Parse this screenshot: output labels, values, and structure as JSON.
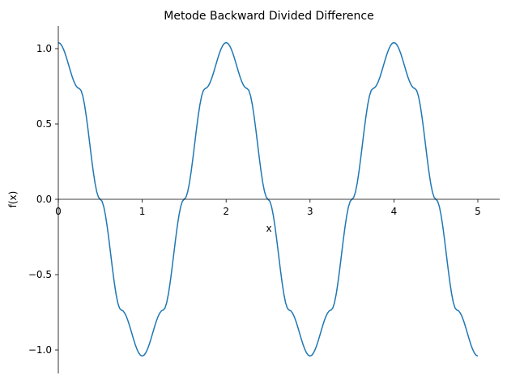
{
  "chart_data": {
    "type": "line",
    "title": "Metode Backward Divided Difference",
    "xlabel": "x",
    "ylabel": "f(x)",
    "xlim": [
      0,
      5.25
    ],
    "ylim": [
      -1.15,
      1.15
    ],
    "x_ticks": [
      0,
      1,
      2,
      3,
      4,
      5
    ],
    "x_tick_labels": [
      "0",
      "1",
      "2",
      "3",
      "4",
      "5"
    ],
    "y_ticks": [
      -1.0,
      -0.5,
      0.0,
      0.5,
      1.0
    ],
    "y_tick_labels": [
      "−1.0",
      "−0.5",
      "0.0",
      "0.5",
      "1.0"
    ],
    "grid": false,
    "series": [
      {
        "color": "#1f77b4",
        "x": [
          0,
          0.25,
          0.5,
          0.75,
          1.0,
          1.25,
          1.5,
          1.75,
          2.0,
          2.25,
          2.5,
          2.75,
          3.0,
          3.25,
          3.5,
          3.75,
          4.0,
          4.25,
          4.5,
          4.75,
          5.0
        ],
        "y": [
          1.04,
          0.735,
          0.0,
          -0.735,
          -1.04,
          -0.735,
          0.0,
          0.735,
          1.04,
          0.735,
          0.0,
          -0.735,
          -1.04,
          -0.735,
          0.0,
          0.735,
          1.04,
          0.735,
          0.0,
          -0.735,
          -1.04
        ]
      }
    ]
  }
}
